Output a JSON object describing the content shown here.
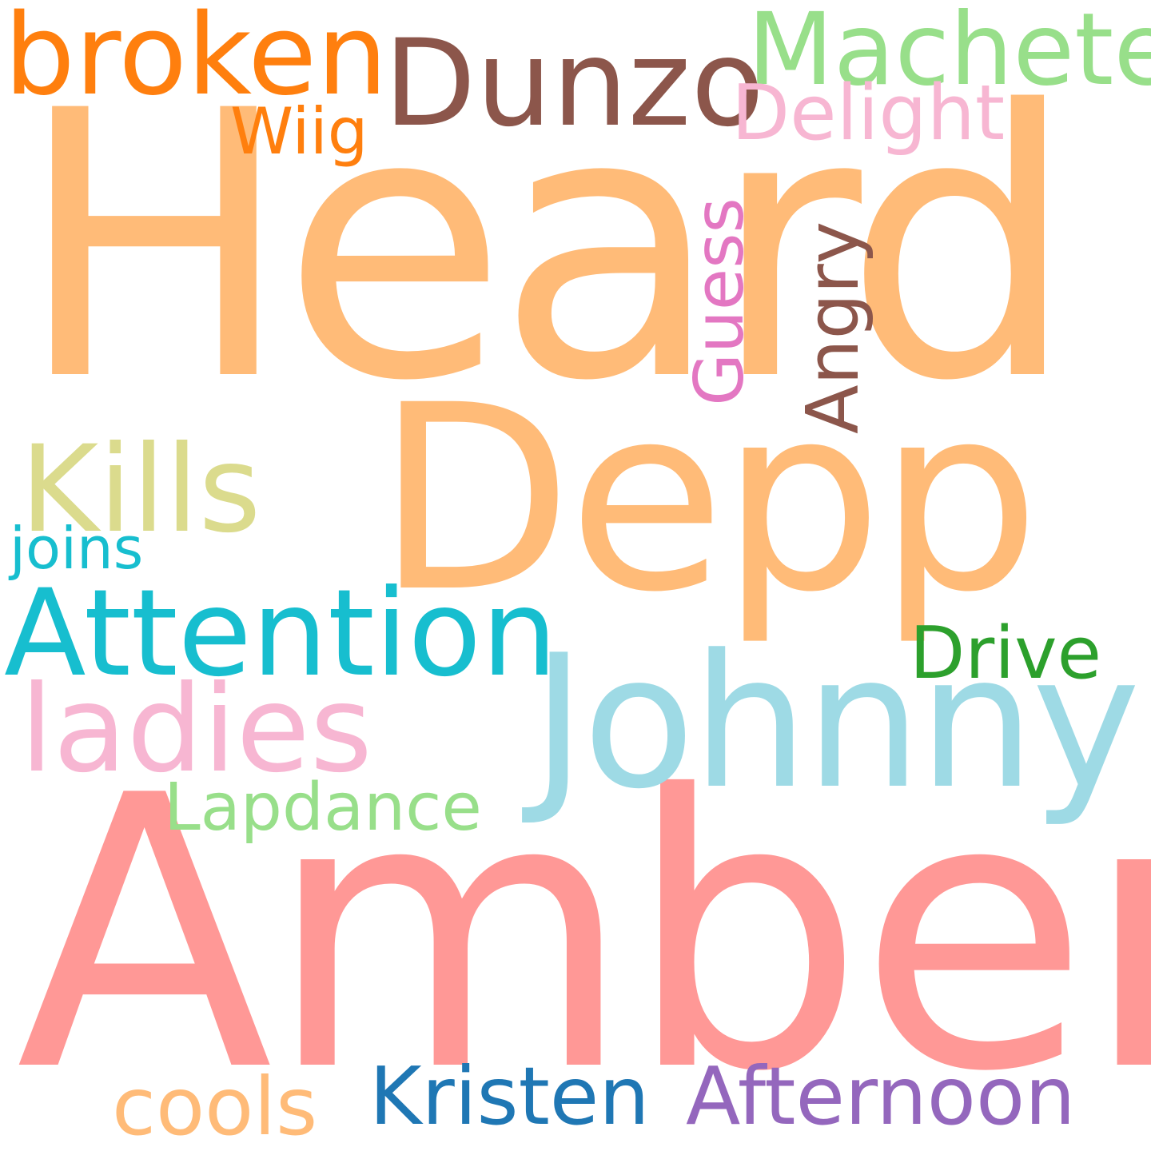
{
  "words": {
    "heard": {
      "text": "Heard",
      "color": "#ffbb78"
    },
    "amber": {
      "text": "Amber",
      "color": "#ff9896"
    },
    "depp": {
      "text": "Depp",
      "color": "#ffbb78"
    },
    "johnny": {
      "text": "Johnny",
      "color": "#9edae5"
    },
    "attention": {
      "text": "Attention",
      "color": "#17becf"
    },
    "ladies": {
      "text": "ladies",
      "color": "#f7b6d2"
    },
    "kills": {
      "text": "Kills",
      "color": "#dbdb8d"
    },
    "broken": {
      "text": "broken",
      "color": "#ff7f0e"
    },
    "dunzo": {
      "text": "Dunzo",
      "color": "#8c564b"
    },
    "machete": {
      "text": "Machete",
      "color": "#98df8a"
    },
    "delight": {
      "text": "Delight",
      "color": "#f7b6d2"
    },
    "wiig": {
      "text": "Wiig",
      "color": "#ff7f0e"
    },
    "guess": {
      "text": "Guess",
      "color": "#e377c2"
    },
    "angry": {
      "text": "Angry",
      "color": "#8c564b"
    },
    "joins": {
      "text": "joins",
      "color": "#17becf"
    },
    "drive": {
      "text": "Drive",
      "color": "#2ca02c"
    },
    "lapdance": {
      "text": "Lapdance",
      "color": "#98df8a"
    },
    "cools": {
      "text": "cools",
      "color": "#ffbb78"
    },
    "kristen": {
      "text": "Kristen",
      "color": "#1f77b4"
    },
    "afternoon": {
      "text": "Afternoon",
      "color": "#9467bd"
    }
  }
}
